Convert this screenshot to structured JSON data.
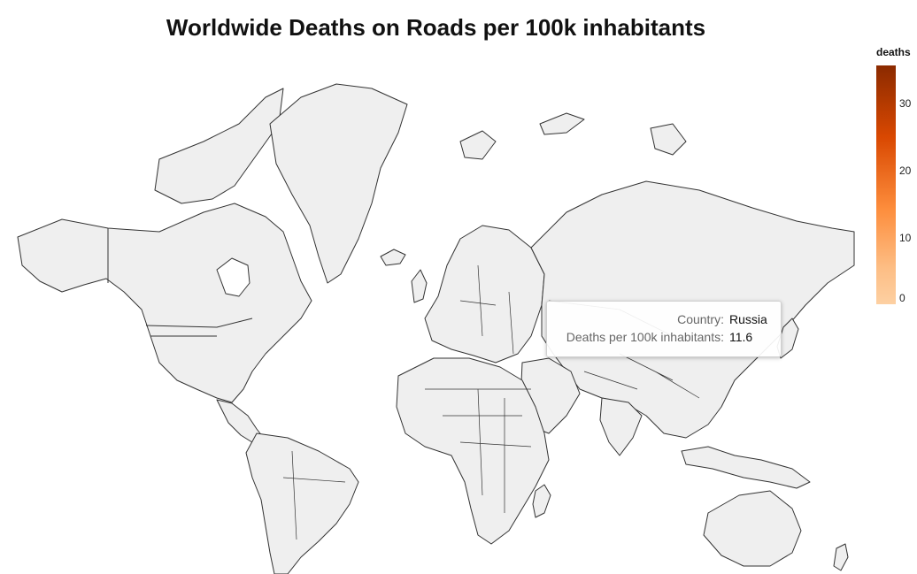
{
  "title": "Worldwide Deaths on Roads per 100k inhabitants",
  "legend": {
    "title": "deaths",
    "ticks": [
      "30",
      "20",
      "10",
      "0"
    ],
    "range": [
      0,
      35
    ],
    "colors": [
      "#fdd0a2",
      "#fd8d3c",
      "#d94801",
      "#8b2a00"
    ]
  },
  "tooltip": {
    "country_label": "Country:",
    "country_value": "Russia",
    "metric_label": "Deaths per 100k inhabitants:",
    "metric_value": "11.6"
  },
  "map": {
    "land_fill": "#efefef",
    "border_color": "#333333"
  }
}
